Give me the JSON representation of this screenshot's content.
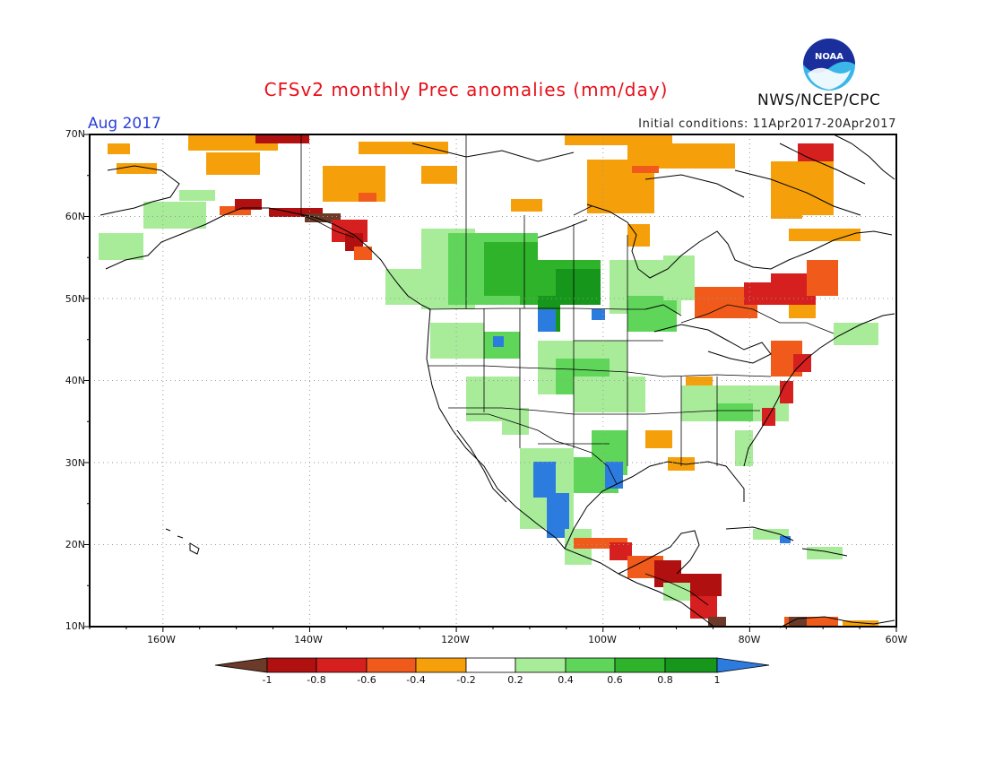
{
  "header": {
    "title": "CFSv2 monthly Prec anomalies (mm/day)",
    "month": "Aug 2017",
    "initial_conditions": "Initial conditions: 11Apr2017-20Apr2017",
    "agency": "NWS/NCEP/CPC",
    "logo_text": "NOAA"
  },
  "map": {
    "lat_labels": [
      "70N",
      "60N",
      "50N",
      "40N",
      "30N",
      "20N",
      "10N"
    ],
    "lon_labels": [
      "160W",
      "140W",
      "120W",
      "100W",
      "80W",
      "60W"
    ],
    "lat_range": [
      10,
      70
    ],
    "lon_range": [
      -170,
      -60
    ]
  },
  "colorbar": {
    "labels": [
      "-1",
      "-0.8",
      "-0.6",
      "-0.4",
      "-0.2",
      "0.2",
      "0.4",
      "0.6",
      "0.8",
      "1"
    ],
    "colors": [
      "#6b3a28",
      "#b01010",
      "#d62020",
      "#f05a1a",
      "#f5a00a",
      "#ffffff",
      "#a8ec9a",
      "#5fd65a",
      "#2fb32a",
      "#16961a",
      "#2c7ce0"
    ]
  }
}
